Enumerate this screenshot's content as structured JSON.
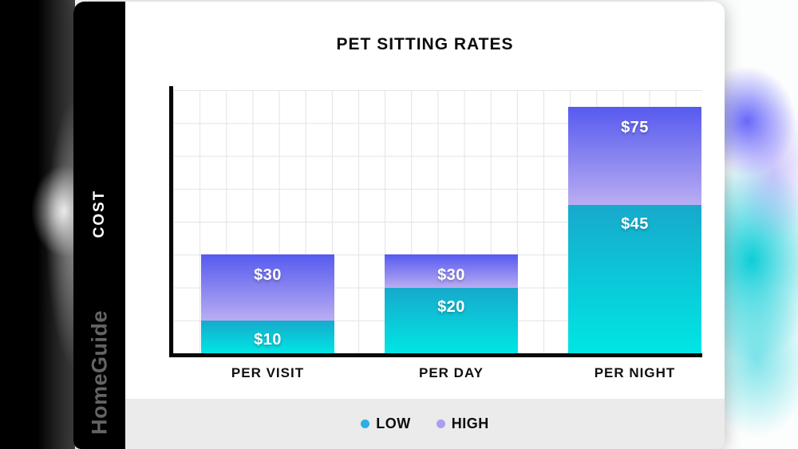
{
  "branding": {
    "cost_label": "COST",
    "brand_name": "HomeGuide"
  },
  "chart_data": {
    "type": "bar",
    "variant": "stacked-range",
    "title": "PET SITTING RATES",
    "categories": [
      "PER VISIT",
      "PER DAY",
      "PER NIGHT"
    ],
    "series": [
      {
        "name": "LOW",
        "values": [
          10,
          20,
          45
        ]
      },
      {
        "name": "HIGH",
        "values": [
          30,
          30,
          75
        ]
      }
    ],
    "value_labels": {
      "low": [
        "$10",
        "$20",
        "$45"
      ],
      "high": [
        "$30",
        "$30",
        "$75"
      ]
    },
    "ylim": [
      0,
      80
    ],
    "grid": true,
    "legend_position": "bottom",
    "colors": {
      "low_gradient_top": "#17a9cc",
      "low_gradient_bottom": "#00e6e4",
      "high_gradient_top": "#565aef",
      "high_gradient_bottom": "#b9adf2"
    }
  },
  "legend": {
    "items": [
      {
        "label": "LOW",
        "swatch": "#2bb0e2"
      },
      {
        "label": "HIGH",
        "swatch": "#a8a0ef"
      }
    ]
  }
}
